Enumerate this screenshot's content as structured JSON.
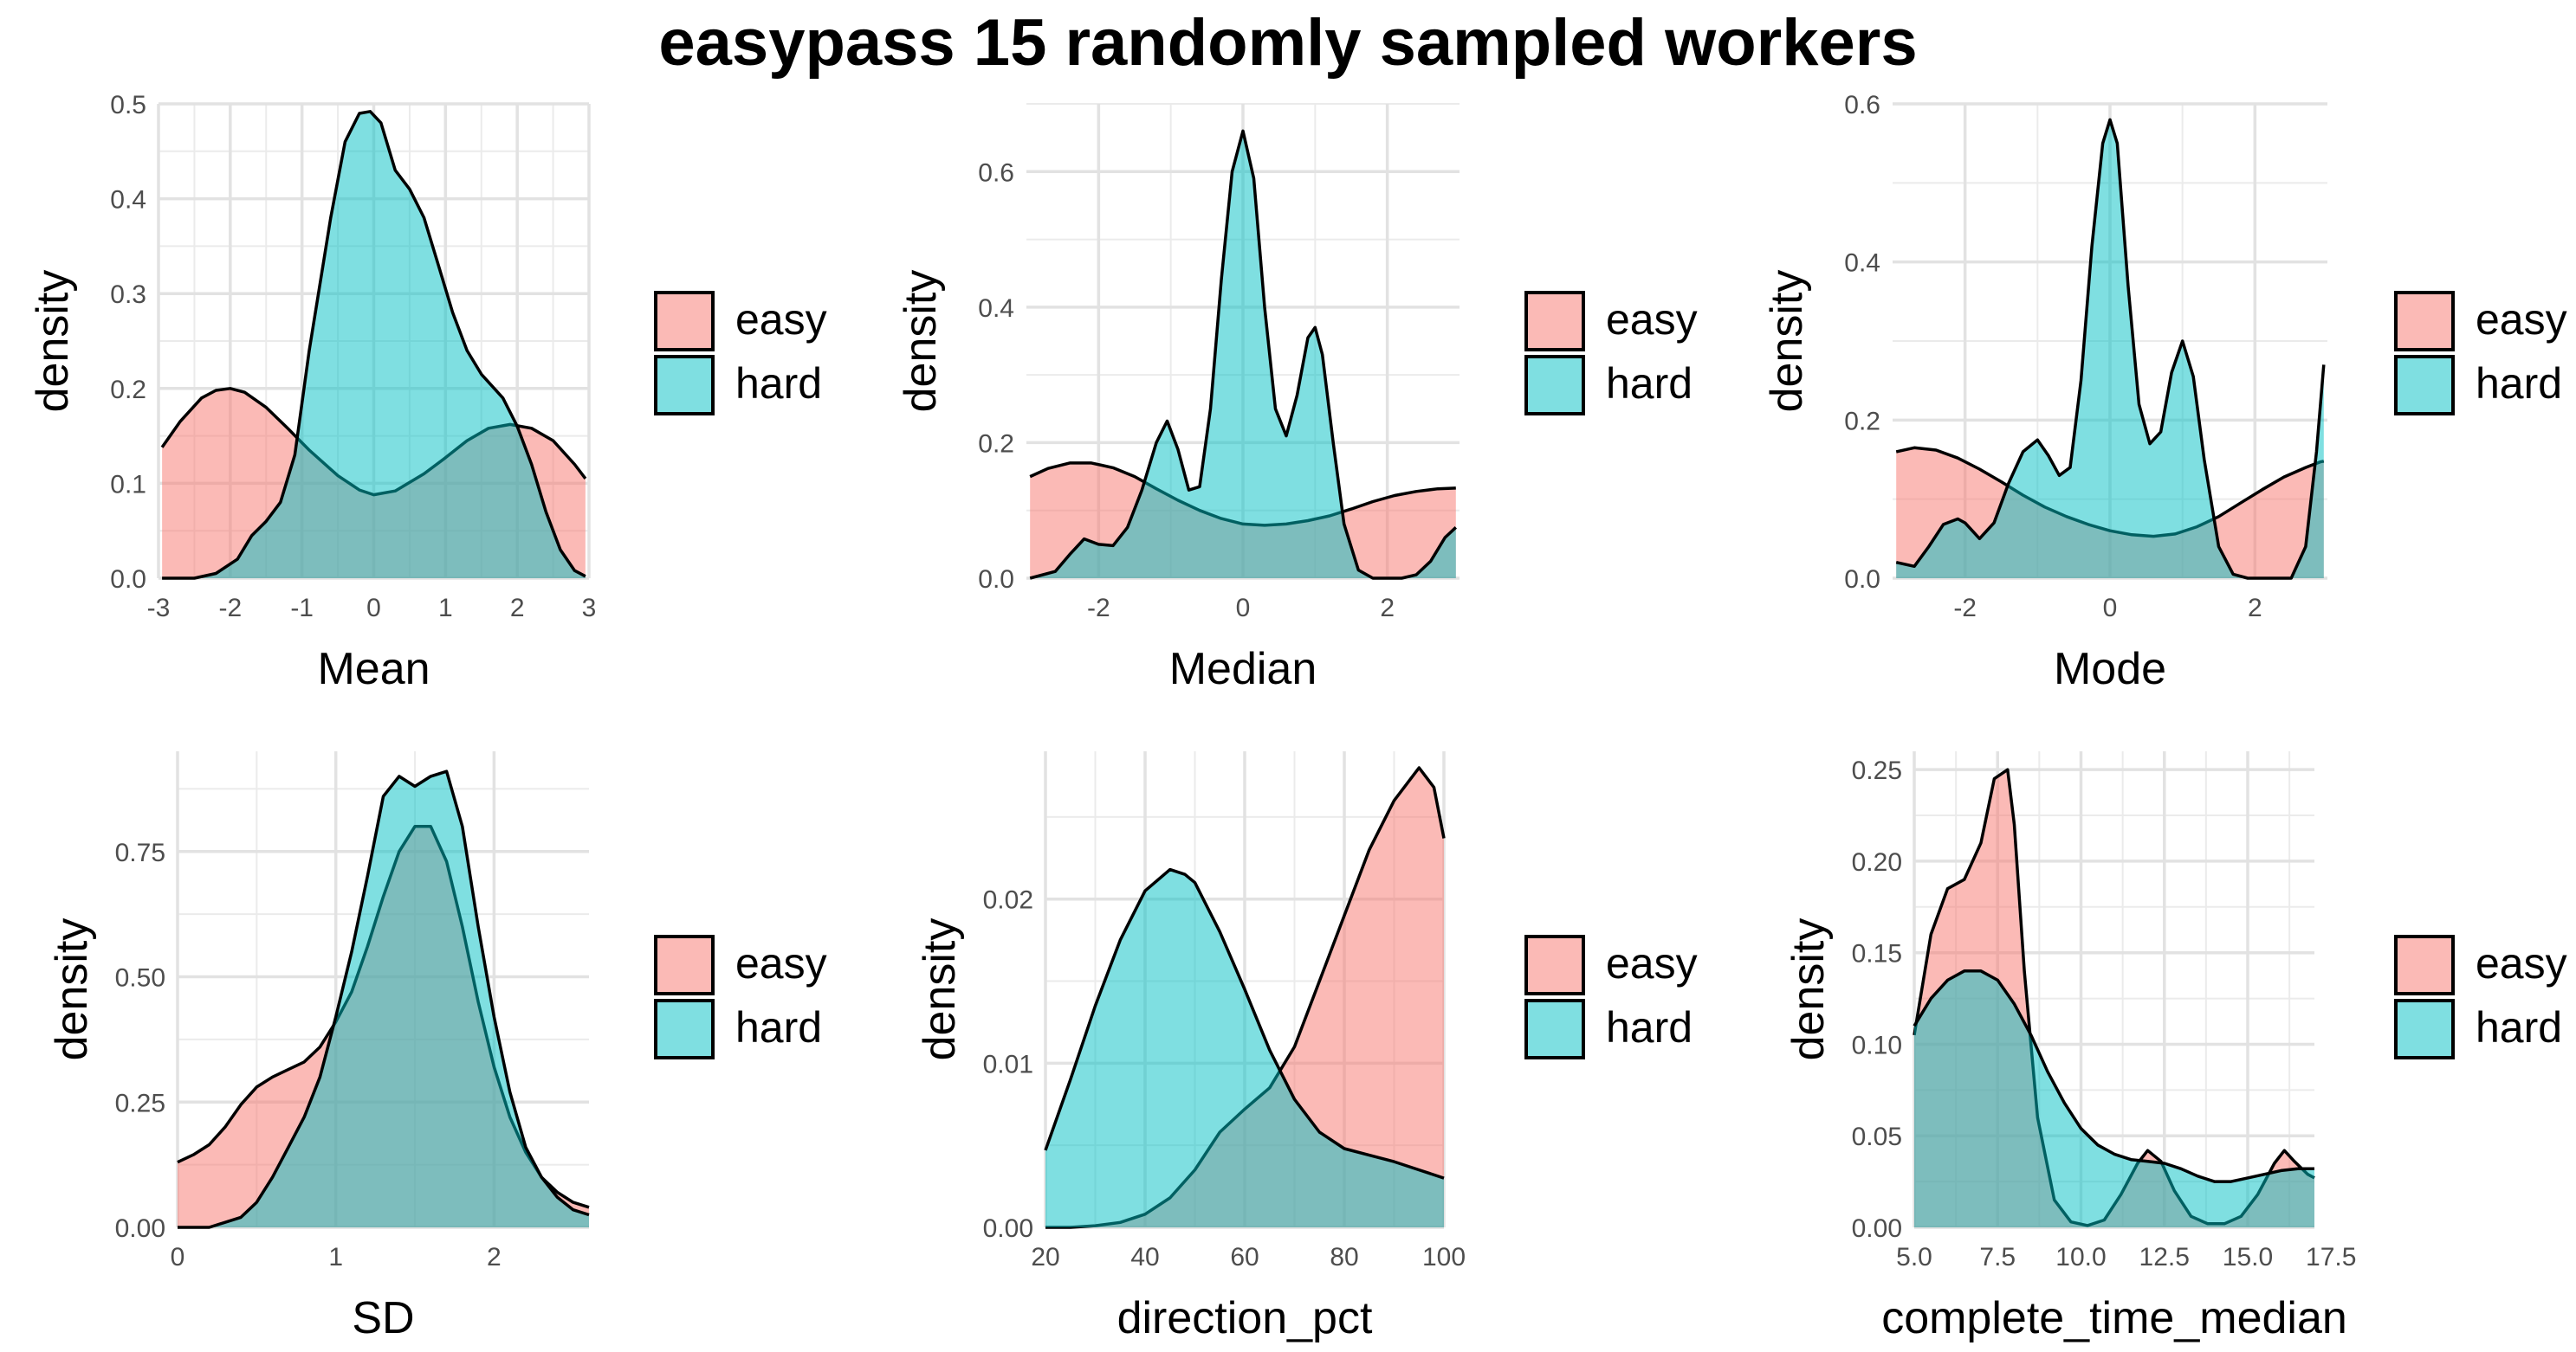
{
  "title": "easypass 15 randomly sampled workers",
  "colors": {
    "easy": "#F8766D",
    "hard": "#00BFC4"
  },
  "chart_data": [
    {
      "type": "area",
      "xlabel": "Mean",
      "ylabel": "density",
      "xlim": [
        -3,
        3
      ],
      "ylim": [
        0,
        0.5
      ],
      "xticks": [
        -3,
        -2,
        -1,
        0,
        1,
        2,
        3
      ],
      "xtick_labels": [
        "-3",
        "-2",
        "-1",
        "0",
        "1",
        "2",
        "3"
      ],
      "yticks": [
        0,
        0.1,
        0.2,
        0.3,
        0.4,
        0.5
      ],
      "ytick_labels": [
        "0.0",
        "0.1",
        "0.2",
        "0.3",
        "0.4",
        "0.5"
      ],
      "legend": {
        "position": "right",
        "entries": [
          "easy",
          "hard"
        ]
      },
      "grid": true,
      "series": [
        {
          "name": "easy",
          "x": [
            -2.95,
            -2.7,
            -2.4,
            -2.2,
            -2.0,
            -1.8,
            -1.5,
            -1.2,
            -0.9,
            -0.5,
            -0.2,
            0.0,
            0.3,
            0.7,
            1.0,
            1.3,
            1.6,
            1.9,
            2.2,
            2.5,
            2.8,
            2.95
          ],
          "y": [
            0.138,
            0.165,
            0.19,
            0.198,
            0.2,
            0.196,
            0.18,
            0.158,
            0.135,
            0.108,
            0.093,
            0.088,
            0.092,
            0.11,
            0.127,
            0.145,
            0.158,
            0.162,
            0.158,
            0.145,
            0.12,
            0.105
          ]
        },
        {
          "name": "hard",
          "x": [
            -2.95,
            -2.5,
            -2.2,
            -1.9,
            -1.7,
            -1.5,
            -1.3,
            -1.1,
            -0.9,
            -0.6,
            -0.4,
            -0.2,
            -0.05,
            0.1,
            0.3,
            0.5,
            0.7,
            0.9,
            1.1,
            1.3,
            1.5,
            1.8,
            2.0,
            2.2,
            2.4,
            2.6,
            2.8,
            2.95
          ],
          "y": [
            0.0,
            0.0,
            0.005,
            0.02,
            0.045,
            0.06,
            0.08,
            0.13,
            0.24,
            0.38,
            0.46,
            0.49,
            0.492,
            0.48,
            0.43,
            0.41,
            0.38,
            0.33,
            0.28,
            0.24,
            0.215,
            0.19,
            0.16,
            0.12,
            0.07,
            0.03,
            0.008,
            0.002
          ]
        }
      ]
    },
    {
      "type": "area",
      "xlabel": "Median",
      "ylabel": "density",
      "xlim": [
        -3,
        3
      ],
      "ylim": [
        0,
        0.7
      ],
      "xticks": [
        -2,
        0,
        2
      ],
      "xtick_labels": [
        "-2",
        "0",
        "2"
      ],
      "yticks": [
        0,
        0.2,
        0.4,
        0.6
      ],
      "ytick_labels": [
        "0.0",
        "0.2",
        "0.4",
        "0.6"
      ],
      "legend": {
        "position": "right",
        "entries": [
          "easy",
          "hard"
        ]
      },
      "grid": true,
      "series": [
        {
          "name": "easy",
          "x": [
            -2.95,
            -2.7,
            -2.4,
            -2.1,
            -1.8,
            -1.5,
            -1.2,
            -0.9,
            -0.6,
            -0.3,
            0.0,
            0.3,
            0.6,
            0.9,
            1.2,
            1.5,
            1.8,
            2.1,
            2.4,
            2.7,
            2.95
          ],
          "y": [
            0.15,
            0.162,
            0.17,
            0.17,
            0.163,
            0.15,
            0.132,
            0.115,
            0.1,
            0.088,
            0.08,
            0.078,
            0.08,
            0.085,
            0.092,
            0.102,
            0.113,
            0.122,
            0.128,
            0.132,
            0.133
          ]
        },
        {
          "name": "hard",
          "x": [
            -2.95,
            -2.6,
            -2.4,
            -2.2,
            -2.0,
            -1.8,
            -1.6,
            -1.4,
            -1.2,
            -1.05,
            -0.9,
            -0.75,
            -0.6,
            -0.45,
            -0.3,
            -0.15,
            0.0,
            0.15,
            0.3,
            0.45,
            0.6,
            0.75,
            0.9,
            1.0,
            1.1,
            1.25,
            1.4,
            1.6,
            1.8,
            2.0,
            2.2,
            2.4,
            2.6,
            2.8,
            2.95
          ],
          "y": [
            0.0,
            0.01,
            0.035,
            0.058,
            0.05,
            0.048,
            0.075,
            0.13,
            0.2,
            0.232,
            0.19,
            0.13,
            0.135,
            0.25,
            0.44,
            0.6,
            0.66,
            0.59,
            0.4,
            0.25,
            0.21,
            0.27,
            0.355,
            0.37,
            0.33,
            0.2,
            0.08,
            0.012,
            0.0,
            0.0,
            0.0,
            0.005,
            0.025,
            0.06,
            0.075
          ]
        }
      ]
    },
    {
      "type": "area",
      "xlabel": "Mode",
      "ylabel": "density",
      "xlim": [
        -3,
        3
      ],
      "ylim": [
        0,
        0.6
      ],
      "xticks": [
        -2,
        0,
        2
      ],
      "xtick_labels": [
        "-2",
        "0",
        "2"
      ],
      "yticks": [
        0,
        0.2,
        0.4,
        0.6
      ],
      "ytick_labels": [
        "0.0",
        "0.2",
        "0.4",
        "0.6"
      ],
      "legend": {
        "position": "right",
        "entries": [
          "easy",
          "hard"
        ]
      },
      "grid": true,
      "series": [
        {
          "name": "easy",
          "x": [
            -2.95,
            -2.7,
            -2.4,
            -2.1,
            -1.8,
            -1.5,
            -1.2,
            -0.9,
            -0.6,
            -0.3,
            0.0,
            0.3,
            0.6,
            0.9,
            1.2,
            1.5,
            1.8,
            2.1,
            2.4,
            2.7,
            2.9,
            2.95
          ],
          "y": [
            0.16,
            0.165,
            0.162,
            0.152,
            0.138,
            0.122,
            0.105,
            0.09,
            0.078,
            0.068,
            0.06,
            0.055,
            0.053,
            0.056,
            0.065,
            0.078,
            0.095,
            0.112,
            0.128,
            0.14,
            0.147,
            0.148
          ]
        },
        {
          "name": "hard",
          "x": [
            -2.95,
            -2.7,
            -2.5,
            -2.3,
            -2.1,
            -2.0,
            -1.8,
            -1.6,
            -1.4,
            -1.2,
            -1.0,
            -0.85,
            -0.7,
            -0.55,
            -0.4,
            -0.25,
            -0.1,
            0.0,
            0.1,
            0.25,
            0.4,
            0.55,
            0.7,
            0.85,
            1.0,
            1.15,
            1.3,
            1.5,
            1.7,
            1.9,
            2.1,
            2.3,
            2.5,
            2.7,
            2.85,
            2.95
          ],
          "y": [
            0.02,
            0.015,
            0.04,
            0.068,
            0.075,
            0.07,
            0.05,
            0.07,
            0.12,
            0.16,
            0.175,
            0.155,
            0.13,
            0.14,
            0.25,
            0.42,
            0.55,
            0.58,
            0.55,
            0.37,
            0.22,
            0.17,
            0.185,
            0.26,
            0.3,
            0.255,
            0.15,
            0.04,
            0.005,
            0.0,
            0.0,
            0.0,
            0.0,
            0.04,
            0.16,
            0.27
          ]
        }
      ]
    },
    {
      "type": "area",
      "xlabel": "SD",
      "ylabel": "density",
      "xlim": [
        0,
        2.6
      ],
      "ylim": [
        0,
        0.95
      ],
      "xticks": [
        0,
        1,
        2
      ],
      "xtick_labels": [
        "0",
        "1",
        "2"
      ],
      "yticks": [
        0,
        0.25,
        0.5,
        0.75
      ],
      "ytick_labels": [
        "0.00",
        "0.25",
        "0.50",
        "0.75"
      ],
      "legend": {
        "position": "right",
        "entries": [
          "easy",
          "hard"
        ]
      },
      "grid": true,
      "series": [
        {
          "name": "easy",
          "x": [
            0.0,
            0.1,
            0.2,
            0.3,
            0.4,
            0.5,
            0.6,
            0.7,
            0.8,
            0.9,
            1.0,
            1.1,
            1.2,
            1.3,
            1.4,
            1.5,
            1.6,
            1.7,
            1.8,
            1.9,
            2.0,
            2.1,
            2.2,
            2.3,
            2.4,
            2.5,
            2.6
          ],
          "y": [
            0.13,
            0.145,
            0.165,
            0.2,
            0.245,
            0.28,
            0.3,
            0.315,
            0.33,
            0.36,
            0.41,
            0.47,
            0.56,
            0.66,
            0.75,
            0.8,
            0.8,
            0.73,
            0.6,
            0.45,
            0.32,
            0.22,
            0.15,
            0.1,
            0.07,
            0.05,
            0.04
          ]
        },
        {
          "name": "hard",
          "x": [
            0.0,
            0.2,
            0.4,
            0.5,
            0.6,
            0.7,
            0.8,
            0.9,
            1.0,
            1.1,
            1.2,
            1.3,
            1.4,
            1.5,
            1.6,
            1.7,
            1.8,
            1.9,
            2.0,
            2.1,
            2.2,
            2.3,
            2.4,
            2.5,
            2.6
          ],
          "y": [
            0.0,
            0.0,
            0.02,
            0.05,
            0.1,
            0.16,
            0.22,
            0.3,
            0.42,
            0.55,
            0.7,
            0.86,
            0.9,
            0.88,
            0.9,
            0.91,
            0.8,
            0.6,
            0.42,
            0.27,
            0.16,
            0.1,
            0.06,
            0.035,
            0.025
          ]
        }
      ]
    },
    {
      "type": "area",
      "xlabel": "direction_pct",
      "ylabel": "density",
      "xlim": [
        20,
        100
      ],
      "ylim": [
        0,
        0.029
      ],
      "xticks": [
        20,
        40,
        60,
        80,
        100
      ],
      "xtick_labels": [
        "20",
        "40",
        "60",
        "80",
        "100"
      ],
      "yticks": [
        0,
        0.01,
        0.02
      ],
      "ytick_labels": [
        "0.00",
        "0.01",
        "0.02"
      ],
      "legend": {
        "position": "right",
        "entries": [
          "easy",
          "hard"
        ]
      },
      "grid": true,
      "series": [
        {
          "name": "easy",
          "x": [
            20,
            25,
            30,
            35,
            40,
            45,
            50,
            55,
            60,
            65,
            70,
            75,
            80,
            85,
            90,
            95,
            98,
            100
          ],
          "y": [
            0.0,
            0.0,
            0.0001,
            0.0003,
            0.0008,
            0.0018,
            0.0035,
            0.0058,
            0.0072,
            0.0085,
            0.011,
            0.015,
            0.019,
            0.023,
            0.026,
            0.028,
            0.0268,
            0.0237
          ]
        },
        {
          "name": "hard",
          "x": [
            20,
            25,
            30,
            35,
            40,
            45,
            48,
            50,
            55,
            60,
            65,
            70,
            75,
            80,
            85,
            90,
            95,
            100
          ],
          "y": [
            0.0047,
            0.009,
            0.0135,
            0.0175,
            0.0205,
            0.0218,
            0.0215,
            0.021,
            0.018,
            0.0145,
            0.0108,
            0.0078,
            0.0058,
            0.0048,
            0.0044,
            0.004,
            0.0035,
            0.003
          ]
        }
      ]
    },
    {
      "type": "area",
      "xlabel": "complete_time_median",
      "ylabel": "density",
      "xlim": [
        5,
        17
      ],
      "ylim": [
        0,
        0.26
      ],
      "xticks": [
        5,
        7.5,
        10,
        12.5,
        15,
        17.5
      ],
      "xtick_labels": [
        "5.0",
        "7.5",
        "10.0",
        "12.5",
        "15.0",
        "17.5"
      ],
      "yticks": [
        0,
        0.05,
        0.1,
        0.15,
        0.2,
        0.25
      ],
      "ytick_labels": [
        "0.00",
        "0.05",
        "0.10",
        "0.15",
        "0.20",
        "0.25"
      ],
      "legend": {
        "position": "right",
        "entries": [
          "easy",
          "hard"
        ]
      },
      "grid": true,
      "series": [
        {
          "name": "easy",
          "x": [
            5.0,
            5.5,
            6.0,
            6.5,
            7.0,
            7.4,
            7.8,
            8.0,
            8.3,
            8.7,
            9.2,
            9.7,
            10.2,
            10.7,
            11.2,
            11.7,
            12.0,
            12.4,
            12.8,
            13.3,
            13.8,
            14.3,
            14.8,
            15.3,
            15.8,
            16.1,
            16.4,
            16.8,
            17.0
          ],
          "y": [
            0.105,
            0.16,
            0.185,
            0.19,
            0.21,
            0.245,
            0.25,
            0.22,
            0.14,
            0.06,
            0.015,
            0.003,
            0.001,
            0.004,
            0.018,
            0.035,
            0.042,
            0.036,
            0.02,
            0.006,
            0.002,
            0.002,
            0.006,
            0.018,
            0.035,
            0.042,
            0.036,
            0.029,
            0.027
          ]
        },
        {
          "name": "hard",
          "x": [
            5.0,
            5.5,
            6.0,
            6.5,
            7.0,
            7.5,
            8.0,
            8.5,
            9.0,
            9.5,
            10.0,
            10.5,
            11.0,
            11.5,
            12.0,
            12.5,
            13.0,
            13.5,
            14.0,
            14.5,
            15.0,
            15.5,
            16.0,
            16.5,
            17.0
          ],
          "y": [
            0.11,
            0.125,
            0.135,
            0.14,
            0.14,
            0.135,
            0.122,
            0.105,
            0.085,
            0.068,
            0.054,
            0.045,
            0.04,
            0.037,
            0.036,
            0.035,
            0.032,
            0.028,
            0.025,
            0.025,
            0.027,
            0.029,
            0.031,
            0.032,
            0.032
          ]
        }
      ]
    }
  ]
}
